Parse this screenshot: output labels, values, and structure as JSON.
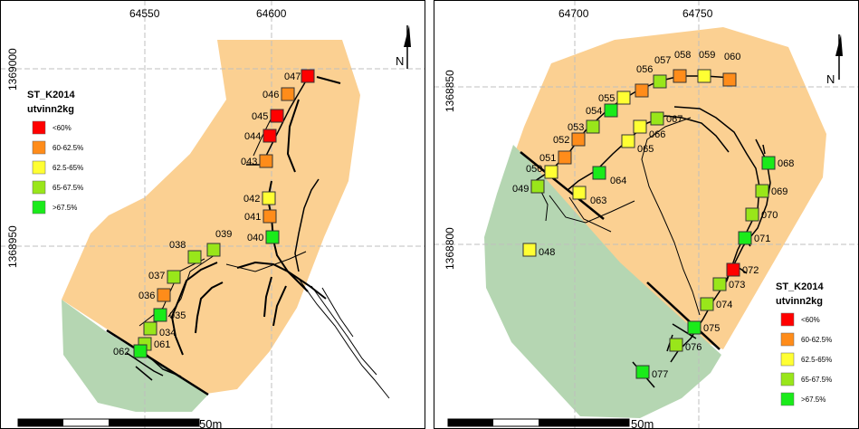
{
  "left_map": {
    "grid_x_labels": [
      "64550",
      "64600"
    ],
    "grid_y_labels": [
      "1369000",
      "1368950"
    ],
    "scale_label": "50m",
    "points": [
      {
        "id": "047",
        "cls": "lt60"
      },
      {
        "id": "046",
        "cls": "60_625"
      },
      {
        "id": "045",
        "cls": "lt60"
      },
      {
        "id": "044",
        "cls": "lt60"
      },
      {
        "id": "043",
        "cls": "60_625"
      },
      {
        "id": "042",
        "cls": "625_65"
      },
      {
        "id": "041",
        "cls": "60_625"
      },
      {
        "id": "040",
        "cls": "gt675"
      },
      {
        "id": "039",
        "cls": "65_675"
      },
      {
        "id": "038",
        "cls": "65_675"
      },
      {
        "id": "037",
        "cls": "65_675"
      },
      {
        "id": "036",
        "cls": "60_625"
      },
      {
        "id": "035",
        "cls": "gt675"
      },
      {
        "id": "034",
        "cls": "65_675"
      },
      {
        "id": "061",
        "cls": "65_675"
      },
      {
        "id": "062",
        "cls": "gt675"
      }
    ]
  },
  "right_map": {
    "grid_x_labels": [
      "64700",
      "64750"
    ],
    "grid_y_labels": [
      "1368850",
      "1368800"
    ],
    "scale_label": "50m",
    "points": [
      {
        "id": "056",
        "cls": "60_625"
      },
      {
        "id": "057",
        "cls": "65_675"
      },
      {
        "id": "058",
        "cls": "60_625"
      },
      {
        "id": "059",
        "cls": "625_65"
      },
      {
        "id": "060",
        "cls": "60_625"
      },
      {
        "id": "055",
        "cls": "625_65"
      },
      {
        "id": "054",
        "cls": "gt675"
      },
      {
        "id": "067",
        "cls": "65_675"
      },
      {
        "id": "053",
        "cls": "65_675"
      },
      {
        "id": "066",
        "cls": "625_65"
      },
      {
        "id": "052",
        "cls": "60_625"
      },
      {
        "id": "065",
        "cls": "625_65"
      },
      {
        "id": "051",
        "cls": "60_625"
      },
      {
        "id": "050",
        "cls": "625_65"
      },
      {
        "id": "049",
        "cls": "65_675"
      },
      {
        "id": "064",
        "cls": "gt675"
      },
      {
        "id": "063",
        "cls": "625_65"
      },
      {
        "id": "068",
        "cls": "gt675"
      },
      {
        "id": "069",
        "cls": "65_675"
      },
      {
        "id": "070",
        "cls": "65_675"
      },
      {
        "id": "071",
        "cls": "gt675"
      },
      {
        "id": "048",
        "cls": "625_65"
      },
      {
        "id": "072",
        "cls": "lt60"
      },
      {
        "id": "073",
        "cls": "65_675"
      },
      {
        "id": "074",
        "cls": "65_675"
      },
      {
        "id": "075",
        "cls": "gt675"
      },
      {
        "id": "076",
        "cls": "65_675"
      },
      {
        "id": "077",
        "cls": "gt675"
      }
    ]
  },
  "legend": {
    "title": "ST_K2014",
    "subtitle": "utvinn2kg",
    "classes": [
      {
        "key": "lt60",
        "label": "<60%",
        "color": "#ff0000"
      },
      {
        "key": "60_625",
        "label": "60-62.5%",
        "color": "#ff8c1a"
      },
      {
        "key": "625_65",
        "label": "62.5-65%",
        "color": "#ffff33"
      },
      {
        "key": "65_675",
        "label": "65-67.5%",
        "color": "#99e61a"
      },
      {
        "key": "gt675",
        "label": ">67.5%",
        "color": "#1aeb1a"
      }
    ]
  },
  "north_label": "N",
  "colors": {
    "orange_zone": "#fbd092",
    "green_zone": "#b5d6b2",
    "grid": "#bfbfbf"
  }
}
